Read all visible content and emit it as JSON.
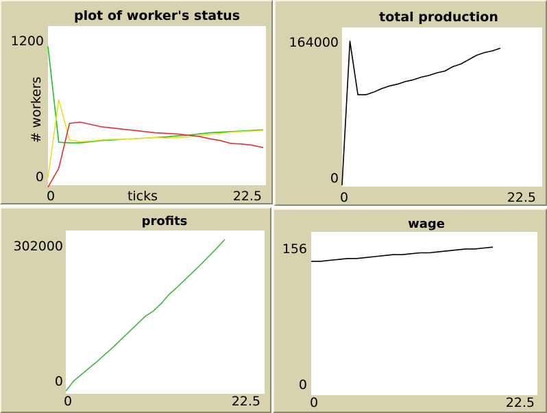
{
  "chart_data": [
    {
      "type": "line",
      "title": "plot of worker's status",
      "xlabel": "ticks",
      "ylabel": "# workers",
      "xlim": [
        0,
        22.5
      ],
      "ylim": [
        0,
        1200
      ],
      "x_tick_labels": [
        "0",
        "22.5"
      ],
      "y_tick_labels": [
        "0",
        "1200"
      ],
      "series": [
        {
          "color": "#22c022",
          "x": [
            0,
            1,
            2,
            3,
            4,
            5,
            6,
            7,
            8,
            9,
            10,
            11,
            12,
            13,
            14,
            15,
            16,
            17,
            18,
            19,
            20
          ],
          "y": [
            1150,
            340,
            335,
            335,
            345,
            355,
            360,
            365,
            370,
            375,
            380,
            385,
            395,
            400,
            410,
            420,
            425,
            430,
            435,
            440,
            445
          ]
        },
        {
          "color": "#e8e020",
          "x": [
            0,
            1,
            2,
            3,
            4,
            5,
            6,
            7,
            8,
            9,
            10,
            11,
            12,
            13,
            14,
            15,
            16,
            17,
            18,
            19,
            20
          ],
          "y": [
            40,
            700,
            360,
            345,
            350,
            360,
            365,
            365,
            370,
            375,
            380,
            375,
            380,
            385,
            395,
            405,
            415,
            425,
            430,
            435,
            440
          ]
        },
        {
          "color": "#e03030",
          "x": [
            0,
            1,
            2,
            3,
            4,
            5,
            6,
            7,
            8,
            9,
            10,
            11,
            12,
            13,
            14,
            15,
            16,
            17,
            18,
            19,
            20
          ],
          "y": [
            -40,
            120,
            500,
            510,
            490,
            470,
            460,
            450,
            440,
            430,
            420,
            415,
            410,
            400,
            390,
            370,
            355,
            330,
            325,
            315,
            295
          ]
        }
      ]
    },
    {
      "type": "line",
      "title": "total production",
      "xlim": [
        0,
        22.5
      ],
      "ylim": [
        0,
        164000
      ],
      "x_tick_labels": [
        "0",
        "22.5"
      ],
      "y_tick_labels": [
        "0",
        "164000"
      ],
      "series": [
        {
          "color": "#000000",
          "x": [
            0,
            1,
            2,
            3,
            4,
            5,
            6,
            7,
            8,
            9,
            10,
            11,
            12,
            13,
            14,
            15,
            16,
            17,
            18,
            19,
            20
          ],
          "y": [
            0,
            164000,
            103000,
            103000,
            106000,
            110000,
            113000,
            115000,
            118000,
            120000,
            123000,
            125000,
            128000,
            130000,
            135000,
            138000,
            143000,
            148000,
            151000,
            153000,
            156000
          ]
        }
      ]
    },
    {
      "type": "line",
      "title": "profits",
      "xlim": [
        0,
        22.5
      ],
      "ylim": [
        0,
        302000
      ],
      "x_tick_labels": [
        "0",
        "22.5"
      ],
      "y_tick_labels": [
        "0",
        "302000"
      ],
      "series": [
        {
          "color": "#3bb83b",
          "x": [
            0,
            1,
            2,
            3,
            4,
            5,
            6,
            7,
            8,
            9,
            10,
            11,
            12,
            13,
            14,
            15,
            16,
            17,
            18,
            19,
            20
          ],
          "y": [
            0,
            20000,
            33000,
            46000,
            59000,
            73000,
            87000,
            102000,
            117000,
            132000,
            147000,
            157000,
            172000,
            190000,
            204000,
            219000,
            234000,
            249000,
            265000,
            281000,
            298000
          ]
        }
      ]
    },
    {
      "type": "line",
      "title": "wage",
      "xlim": [
        0,
        22.5
      ],
      "ylim": [
        0,
        156
      ],
      "x_tick_labels": [
        "0",
        "22.5"
      ],
      "y_tick_labels": [
        "0",
        "156"
      ],
      "series": [
        {
          "color": "#000000",
          "x": [
            0,
            1,
            2,
            3,
            4,
            5,
            6,
            7,
            8,
            9,
            10,
            11,
            12,
            13,
            14,
            15,
            16,
            17,
            18,
            19,
            20
          ],
          "y": [
            138,
            138,
            139,
            140,
            141,
            141,
            142,
            143,
            144,
            145,
            145,
            146,
            147,
            147,
            148,
            149,
            150,
            151,
            151,
            152,
            153
          ]
        }
      ]
    }
  ]
}
